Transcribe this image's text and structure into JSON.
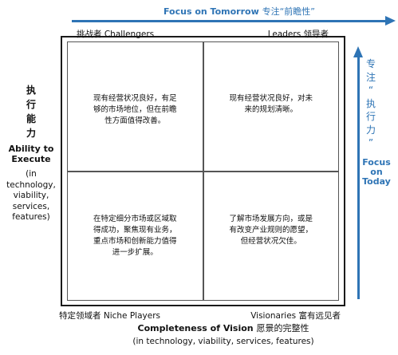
{
  "top_axis": {
    "label_en": "Focus on Tomorrow",
    "label_cn": "专注“前瞻性”"
  },
  "right_axis": {
    "label_cn_chars": [
      "专",
      "注",
      "“",
      "执",
      "行",
      "力",
      "”"
    ],
    "label_en_lines": [
      "Focus",
      "on",
      "Today"
    ]
  },
  "left_axis": {
    "label_cn_chars": [
      "执",
      "行",
      "能",
      "力"
    ],
    "label_en_lines": [
      "Ability to",
      "Execute"
    ],
    "sub_lines": [
      "(in technology,",
      "viability,",
      "services,",
      "features)"
    ]
  },
  "bottom_axis": {
    "label_en": "Completeness of Vision",
    "label_cn": "愿景的完整性",
    "sub": "(in technology, viability, services, features)"
  },
  "corners": {
    "challengers": "挑战者  Challengers",
    "leaders": "Leaders  领导者",
    "niche": "特定领域者  Niche Players",
    "visionaries": "Visionaries  富有远见者"
  },
  "quadrants": {
    "top_left": [
      "现有经营状况良好，有足",
      "够的市场地位，但在前瞻",
      "性方面值得改善。"
    ],
    "top_right": [
      "现有经营状况良好，对未",
      "来的规划清晰。"
    ],
    "bottom_left": [
      "在特定细分市场或区域取",
      "得成功，聚焦现有业务，",
      "重点市场和创新能力值得",
      "进一步扩展。"
    ],
    "bottom_right": [
      "了解市场发展方向，或是",
      "有改变产业规则的愿望，",
      "但经营状况欠佳。"
    ]
  },
  "colors": {
    "accent_blue": "#2e74b5",
    "frame": "#1a1a1a"
  }
}
